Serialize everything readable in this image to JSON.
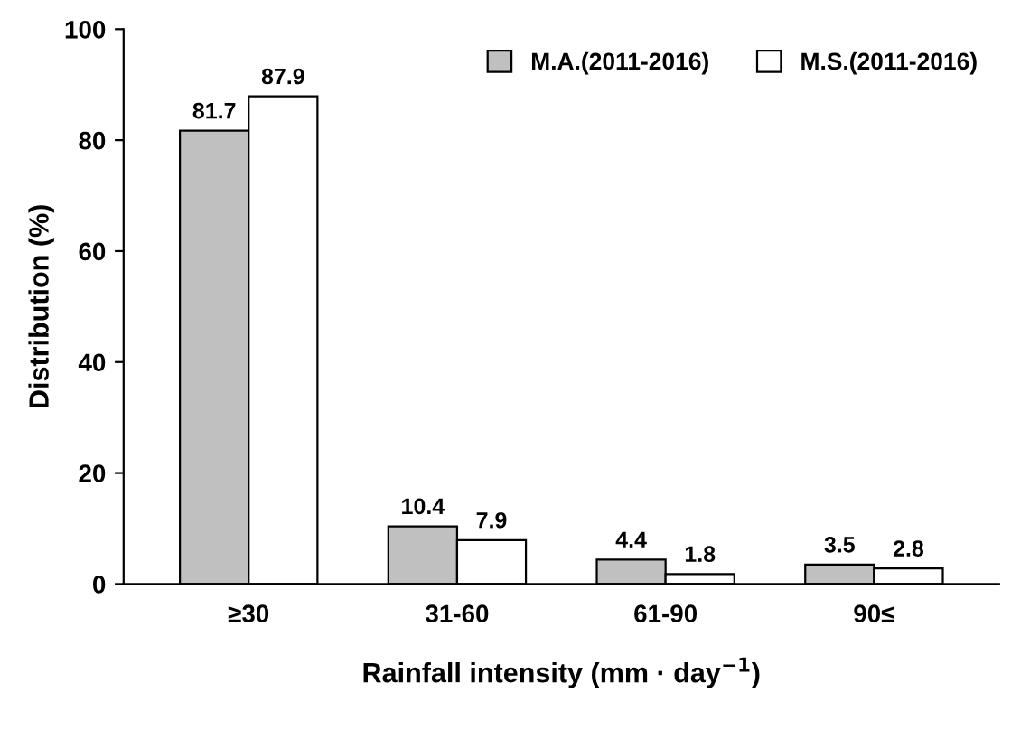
{
  "chart_data": {
    "type": "bar",
    "xlabel": "Rainfall intensity (mm · day$^{−1}$)",
    "ylabel": "Distribution (%)",
    "categories": [
      "≥30",
      "31-60",
      "61-90",
      "90≤"
    ],
    "series": [
      {
        "name": "M.A.(2011-2016)",
        "color": "#c0c0c0",
        "values": [
          81.7,
          10.4,
          4.4,
          3.5
        ]
      },
      {
        "name": "M.S.(2011-2016)",
        "color": "#ffffff",
        "values": [
          87.9,
          7.9,
          1.8,
          2.8
        ]
      }
    ],
    "ylim": [
      0,
      100
    ],
    "yticks": [
      0,
      20,
      40,
      60,
      80,
      100
    ],
    "data_labels": true,
    "legend": "top right",
    "grid": false
  }
}
